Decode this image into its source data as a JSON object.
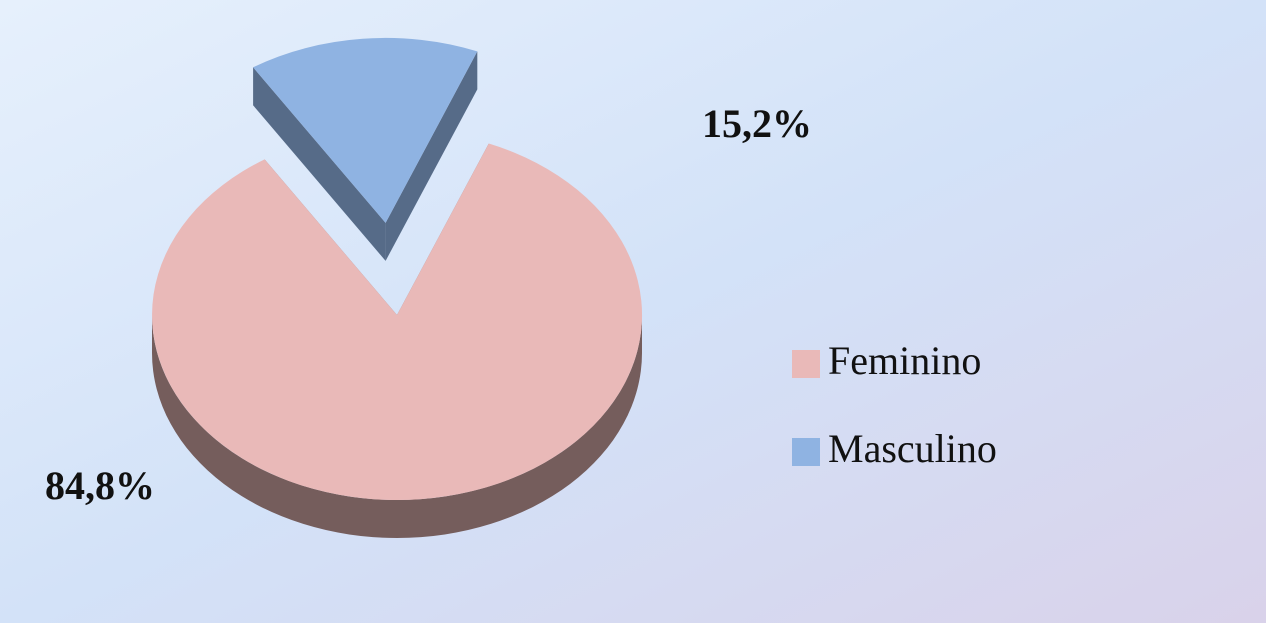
{
  "chart_data": {
    "type": "pie",
    "categories": [
      "Feminino",
      "Masculino"
    ],
    "values": [
      84.8,
      15.2
    ],
    "value_labels": [
      "84,8%",
      "15,2%"
    ],
    "colors": [
      "#e9b9b8",
      "#8fb3e2"
    ],
    "legend": "right"
  }
}
